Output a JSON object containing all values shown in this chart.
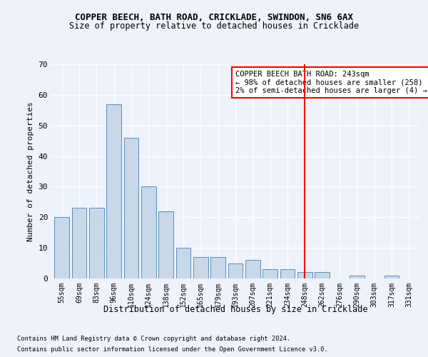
{
  "title": "COPPER BEECH, BATH ROAD, CRICKLADE, SWINDON, SN6 6AX",
  "subtitle": "Size of property relative to detached houses in Cricklade",
  "xlabel": "Distribution of detached houses by size in Cricklade",
  "ylabel": "Number of detached properties",
  "categories": [
    "55sqm",
    "69sqm",
    "83sqm",
    "96sqm",
    "110sqm",
    "124sqm",
    "138sqm",
    "152sqm",
    "165sqm",
    "179sqm",
    "193sqm",
    "207sqm",
    "221sqm",
    "234sqm",
    "248sqm",
    "262sqm",
    "276sqm",
    "290sqm",
    "303sqm",
    "317sqm",
    "331sqm"
  ],
  "values": [
    20,
    23,
    23,
    57,
    46,
    30,
    22,
    10,
    7,
    7,
    5,
    6,
    3,
    3,
    2,
    2,
    0,
    1,
    0,
    1,
    0
  ],
  "bar_color": "#c8d8e8",
  "bar_edge_color": "#5b8db8",
  "vline_x_index": 14,
  "vline_color": "red",
  "annotation_text": "COPPER BEECH BATH ROAD: 243sqm\n← 98% of detached houses are smaller (258)\n2% of semi-detached houses are larger (4) →",
  "ylim": [
    0,
    70
  ],
  "yticks": [
    0,
    10,
    20,
    30,
    40,
    50,
    60,
    70
  ],
  "background_color": "#eef2fa",
  "grid_color": "#ffffff",
  "footer_line1": "Contains HM Land Registry data © Crown copyright and database right 2024.",
  "footer_line2": "Contains public sector information licensed under the Open Government Licence v3.0."
}
